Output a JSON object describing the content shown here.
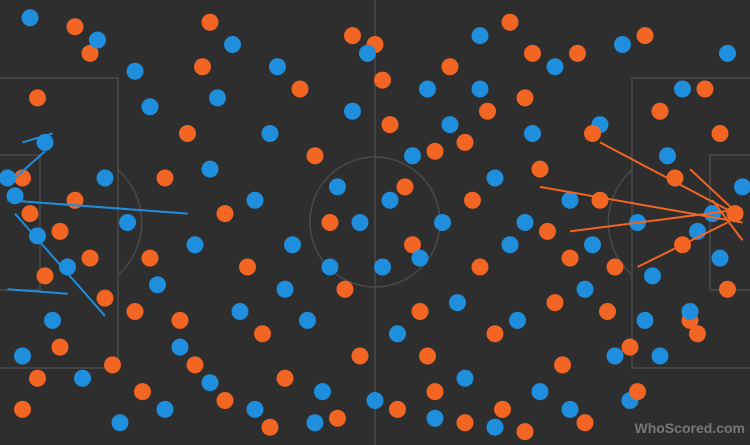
{
  "chart_data": {
    "type": "scatter",
    "xlim": [
      0,
      100
    ],
    "ylim": [
      0,
      100
    ],
    "watermark": "WhoScored.com",
    "series": [
      {
        "color": "#f26522",
        "x": [
          10,
          12,
          5,
          3,
          4,
          8,
          10,
          12,
          6,
          14,
          18,
          20,
          22,
          25,
          27,
          28,
          30,
          33,
          35,
          38,
          40,
          42,
          44,
          46,
          48,
          50,
          52,
          54,
          55,
          56,
          58,
          60,
          62,
          63,
          64,
          66,
          67,
          68,
          70,
          72,
          73,
          74,
          75,
          77,
          79,
          80,
          82,
          84,
          86,
          88,
          90,
          91,
          92,
          94,
          96,
          98,
          97,
          93,
          85,
          78,
          70,
          62,
          57,
          53,
          45,
          36,
          30,
          26,
          24,
          19,
          15,
          8,
          5,
          3,
          47,
          51,
          58,
          65,
          71,
          76,
          81
        ],
        "y": [
          94,
          88,
          78,
          60,
          52,
          48,
          55,
          42,
          38,
          33,
          30,
          42,
          60,
          70,
          85,
          95,
          52,
          40,
          25,
          15,
          80,
          65,
          50,
          35,
          20,
          90,
          72,
          58,
          45,
          30,
          12,
          85,
          68,
          55,
          40,
          25,
          8,
          95,
          78,
          62,
          48,
          32,
          18,
          88,
          70,
          55,
          40,
          22,
          92,
          75,
          60,
          45,
          28,
          80,
          70,
          52,
          35,
          25,
          12,
          5,
          3,
          5,
          20,
          8,
          6,
          4,
          10,
          18,
          28,
          12,
          18,
          22,
          15,
          8,
          92,
          82,
          66,
          75,
          88,
          42,
          30
        ],
        "passes": [
          {
            "x": [
              72,
              99
            ],
            "y": [
              58,
              50
            ]
          },
          {
            "x": [
              76,
              99
            ],
            "y": [
              48,
              53
            ]
          },
          {
            "x": [
              80,
              98
            ],
            "y": [
              68,
              52
            ]
          },
          {
            "x": [
              85,
              97
            ],
            "y": [
              40,
              50
            ]
          },
          {
            "x": [
              95,
              99
            ],
            "y": [
              55,
              46
            ]
          },
          {
            "x": [
              92,
              99
            ],
            "y": [
              62,
              51
            ]
          }
        ]
      },
      {
        "color": "#1f8fdd",
        "x": [
          4,
          13,
          18,
          20,
          6,
          2,
          5,
          9,
          14,
          17,
          21,
          24,
          26,
          28,
          29,
          31,
          32,
          34,
          36,
          37,
          39,
          41,
          43,
          45,
          47,
          49,
          51,
          53,
          55,
          57,
          59,
          61,
          62,
          64,
          66,
          68,
          69,
          71,
          72,
          74,
          76,
          78,
          80,
          82,
          83,
          85,
          87,
          89,
          91,
          93,
          95,
          96,
          99,
          97,
          92,
          88,
          84,
          76,
          66,
          58,
          50,
          42,
          34,
          28,
          22,
          16,
          11,
          7,
          3,
          1,
          48,
          52,
          44,
          38,
          56,
          60,
          70,
          79,
          86,
          64
        ],
        "y": [
          96,
          91,
          84,
          76,
          68,
          56,
          47,
          40,
          60,
          50,
          36,
          22,
          45,
          62,
          78,
          90,
          30,
          55,
          70,
          85,
          45,
          28,
          12,
          58,
          75,
          88,
          40,
          25,
          65,
          80,
          50,
          32,
          15,
          92,
          60,
          45,
          28,
          70,
          12,
          85,
          55,
          35,
          72,
          20,
          90,
          50,
          38,
          65,
          80,
          48,
          52,
          42,
          58,
          88,
          30,
          20,
          10,
          8,
          4,
          6,
          10,
          5,
          8,
          14,
          8,
          5,
          15,
          28,
          20,
          60,
          50,
          55,
          40,
          35,
          42,
          72,
          50,
          45,
          28,
          80
        ],
        "passes": [
          {
            "x": [
              1,
              25
            ],
            "y": [
              55,
              52
            ]
          },
          {
            "x": [
              2,
              14
            ],
            "y": [
              52,
              29
            ]
          },
          {
            "x": [
              1,
              9
            ],
            "y": [
              35,
              34
            ]
          },
          {
            "x": [
              3,
              7
            ],
            "y": [
              68,
              70
            ]
          },
          {
            "x": [
              2,
              6
            ],
            "y": [
              60,
              66
            ]
          }
        ]
      }
    ]
  }
}
